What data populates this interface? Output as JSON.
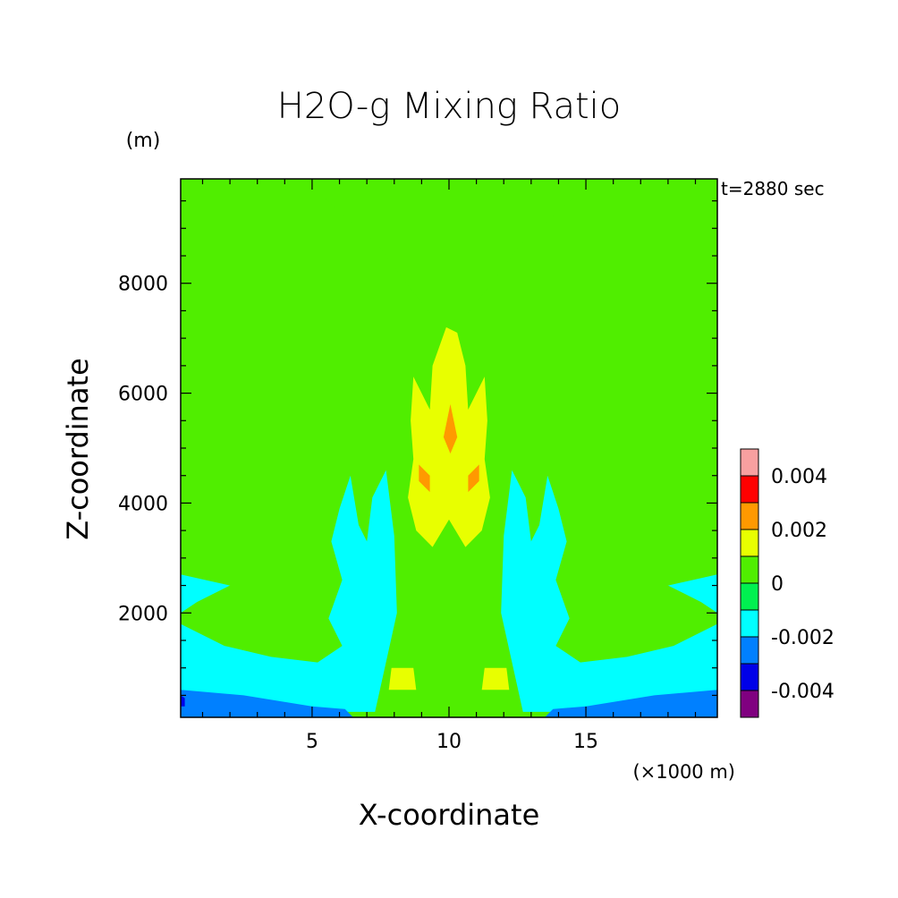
{
  "chart_data": {
    "type": "heatmap",
    "subtype": "filled-contour",
    "title": "H2O-g Mixing Ratio",
    "time_label": "t=2880 sec",
    "xlabel": "X-coordinate",
    "ylabel": "Z-coordinate",
    "x_unit": "(×1000 m)",
    "y_unit": "(m)",
    "xlim": [
      0.2,
      19.8
    ],
    "ylim": [
      100,
      9900
    ],
    "x_ticks": [
      5,
      10,
      15
    ],
    "x_tick_labels": [
      "5",
      "10",
      "15"
    ],
    "y_ticks": [
      2000,
      4000,
      6000,
      8000
    ],
    "y_tick_labels": [
      "2000",
      "4000",
      "6000",
      "8000"
    ],
    "colorbar": {
      "levels": [
        -0.005,
        -0.004,
        -0.003,
        -0.002,
        -0.001,
        0,
        0.001,
        0.002,
        0.003,
        0.004,
        0.005
      ],
      "colors": [
        "#800080",
        "#0000e8",
        "#0080ff",
        "#00ffff",
        "#00f050",
        "#50ee00",
        "#e8ff00",
        "#ff9900",
        "#ff0000",
        "#f8a0a0"
      ],
      "tick_values": [
        -0.004,
        -0.002,
        0,
        0.002,
        0.004
      ],
      "tick_labels": [
        "-0.004",
        "-0.002",
        "0",
        "0.002",
        "0.004"
      ]
    },
    "background_level": "0 to 0.001",
    "regions": [
      {
        "level": 0.0005,
        "description": "upper anvil outflow",
        "polygon": [
          [
            4.7,
            9.9
          ],
          [
            15.3,
            9.9
          ],
          [
            14.2,
            9.4
          ],
          [
            12.6,
            8.7
          ],
          [
            11.4,
            7.9
          ],
          [
            10.6,
            7.4
          ],
          [
            10,
            7.3
          ],
          [
            9.4,
            7.4
          ],
          [
            8.6,
            7.9
          ],
          [
            7.4,
            8.7
          ],
          [
            5.8,
            9.4
          ]
        ]
      },
      {
        "level": 0.0005,
        "description": "central column",
        "polygon": [
          [
            8.5,
            7.1
          ],
          [
            11.5,
            7.1
          ],
          [
            11.8,
            6.2
          ],
          [
            11.7,
            5.2
          ],
          [
            11.6,
            4.2
          ],
          [
            11.9,
            3.5
          ],
          [
            11.6,
            2.2
          ],
          [
            12.1,
            1.5
          ],
          [
            12.5,
            0.9
          ],
          [
            12.9,
            0.1
          ],
          [
            7.1,
            0.1
          ],
          [
            7.5,
            0.9
          ],
          [
            7.9,
            1.5
          ],
          [
            8.4,
            2.2
          ],
          [
            8.1,
            3.5
          ],
          [
            8.4,
            4.2
          ],
          [
            8.3,
            5.2
          ],
          [
            8.2,
            6.2
          ]
        ]
      },
      {
        "level": 0.0015,
        "description": "core moist column",
        "polygon": [
          [
            9.9,
            7.2
          ],
          [
            10.3,
            7.1
          ],
          [
            10.6,
            6.5
          ],
          [
            10.7,
            5.7
          ],
          [
            11.3,
            6.3
          ],
          [
            11.4,
            5.5
          ],
          [
            11.3,
            4.8
          ],
          [
            11.5,
            4.1
          ],
          [
            11.2,
            3.5
          ],
          [
            10.6,
            3.2
          ],
          [
            10,
            3.7
          ],
          [
            9.4,
            3.2
          ],
          [
            8.8,
            3.5
          ],
          [
            8.5,
            4.1
          ],
          [
            8.7,
            4.8
          ],
          [
            8.6,
            5.5
          ],
          [
            8.7,
            6.3
          ],
          [
            9.3,
            5.7
          ],
          [
            9.4,
            6.5
          ]
        ]
      },
      {
        "level": 0.0025,
        "description": "updraft maximum",
        "polygon": [
          [
            10.05,
            5.8
          ],
          [
            10.3,
            5.2
          ],
          [
            10.05,
            4.9
          ],
          [
            9.8,
            5.2
          ]
        ]
      },
      {
        "level": 0.0025,
        "description": "left core lobe",
        "polygon": [
          [
            8.9,
            4.7
          ],
          [
            9.3,
            4.5
          ],
          [
            9.3,
            4.2
          ],
          [
            8.9,
            4.4
          ]
        ]
      },
      {
        "level": 0.0025,
        "description": "right core lobe",
        "polygon": [
          [
            11.1,
            4.7
          ],
          [
            10.7,
            4.5
          ],
          [
            10.7,
            4.2
          ],
          [
            11.1,
            4.4
          ]
        ]
      },
      {
        "level": 0.0015,
        "description": "low-level moist patch left",
        "polygon": [
          [
            7.9,
            1.0
          ],
          [
            8.7,
            1.0
          ],
          [
            8.8,
            0.6
          ],
          [
            7.8,
            0.6
          ]
        ]
      },
      {
        "level": 0.0015,
        "description": "low-level moist patch right",
        "polygon": [
          [
            11.3,
            1.0
          ],
          [
            12.1,
            1.0
          ],
          [
            12.2,
            0.6
          ],
          [
            11.2,
            0.6
          ]
        ]
      },
      {
        "level": -0.0015,
        "description": "dry region left",
        "polygon": [
          [
            0.2,
            2.7
          ],
          [
            2.0,
            2.5
          ],
          [
            0.8,
            2.2
          ],
          [
            0.2,
            2.0
          ],
          [
            0.2,
            1.8
          ],
          [
            1.8,
            1.4
          ],
          [
            3.5,
            1.2
          ],
          [
            5.2,
            1.1
          ],
          [
            6.1,
            1.4
          ],
          [
            5.6,
            1.9
          ],
          [
            6.1,
            2.6
          ],
          [
            5.7,
            3.3
          ],
          [
            6.0,
            3.9
          ],
          [
            6.4,
            4.5
          ],
          [
            6.7,
            3.6
          ],
          [
            7.0,
            3.3
          ],
          [
            7.2,
            4.1
          ],
          [
            7.7,
            4.6
          ],
          [
            8.0,
            3.4
          ],
          [
            8.1,
            2.0
          ],
          [
            7.3,
            0.2
          ],
          [
            0.2,
            0.2
          ]
        ]
      },
      {
        "level": -0.0015,
        "description": "dry region right",
        "polygon": [
          [
            19.8,
            2.7
          ],
          [
            18.0,
            2.5
          ],
          [
            19.2,
            2.2
          ],
          [
            19.8,
            2.0
          ],
          [
            19.8,
            1.8
          ],
          [
            18.2,
            1.4
          ],
          [
            16.5,
            1.2
          ],
          [
            14.8,
            1.1
          ],
          [
            13.9,
            1.4
          ],
          [
            14.4,
            1.9
          ],
          [
            13.9,
            2.6
          ],
          [
            14.3,
            3.3
          ],
          [
            14.0,
            3.9
          ],
          [
            13.6,
            4.5
          ],
          [
            13.3,
            3.6
          ],
          [
            13.0,
            3.3
          ],
          [
            12.8,
            4.1
          ],
          [
            12.3,
            4.6
          ],
          [
            12.0,
            3.4
          ],
          [
            11.9,
            2.0
          ],
          [
            12.7,
            0.2
          ],
          [
            19.8,
            0.2
          ]
        ]
      },
      {
        "level": -0.0025,
        "description": "boundary layer dry left",
        "polygon": [
          [
            0.2,
            0.6
          ],
          [
            2.5,
            0.5
          ],
          [
            5.0,
            0.3
          ],
          [
            6.2,
            0.25
          ],
          [
            6.5,
            0.1
          ],
          [
            0.2,
            0.1
          ]
        ]
      },
      {
        "level": -0.0025,
        "description": "boundary layer dry right",
        "polygon": [
          [
            19.8,
            0.6
          ],
          [
            17.5,
            0.5
          ],
          [
            15.0,
            0.3
          ],
          [
            13.8,
            0.25
          ],
          [
            13.5,
            0.1
          ],
          [
            19.8,
            0.1
          ]
        ]
      },
      {
        "level": -0.0035,
        "description": "surface minimum",
        "polygon": [
          [
            0.2,
            0.5
          ],
          [
            0.35,
            0.45
          ],
          [
            0.35,
            0.3
          ],
          [
            0.2,
            0.3
          ]
        ]
      }
    ]
  }
}
